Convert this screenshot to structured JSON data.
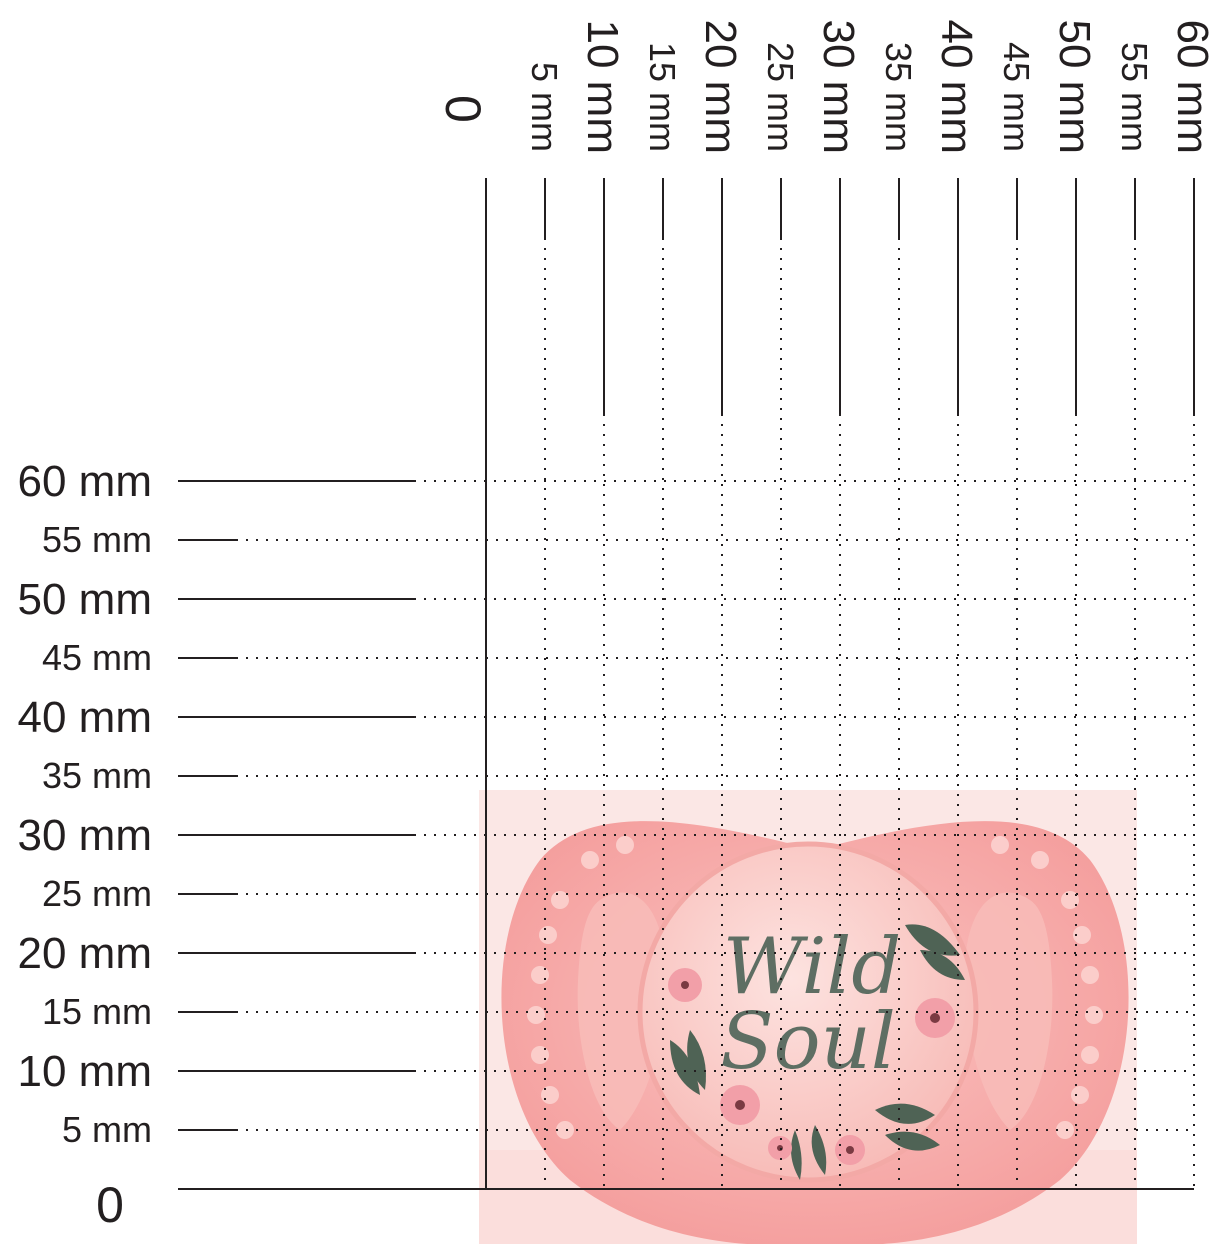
{
  "ruler": {
    "unit": "mm",
    "zero_label": "0",
    "max_mm": 60,
    "step_mm": 5,
    "ticks": [
      {
        "value": 5,
        "label": "5 mm",
        "major": false
      },
      {
        "value": 10,
        "label": "10 mm",
        "major": true
      },
      {
        "value": 15,
        "label": "15 mm",
        "major": false
      },
      {
        "value": 20,
        "label": "20 mm",
        "major": true
      },
      {
        "value": 25,
        "label": "25 mm",
        "major": false
      },
      {
        "value": 30,
        "label": "30 mm",
        "major": true
      },
      {
        "value": 35,
        "label": "35 mm",
        "major": false
      },
      {
        "value": 40,
        "label": "40 mm",
        "major": true
      },
      {
        "value": 45,
        "label": "45 mm",
        "major": false
      },
      {
        "value": 50,
        "label": "50 mm",
        "major": true
      },
      {
        "value": 55,
        "label": "55 mm",
        "major": false
      },
      {
        "value": 60,
        "label": "60 mm",
        "major": true
      }
    ]
  },
  "product": {
    "kind": "pacifier",
    "print_text_line1": "Wild",
    "print_text_line2": "Soul",
    "width_mm": 55,
    "height_mm": 34,
    "colors": {
      "shield": "#f6a7a6",
      "button": "#f9c6c3",
      "text": "#5e6e63",
      "leaf": "#4f6355",
      "flower": "#f2a0a8",
      "background": "#fbe5e3"
    }
  }
}
